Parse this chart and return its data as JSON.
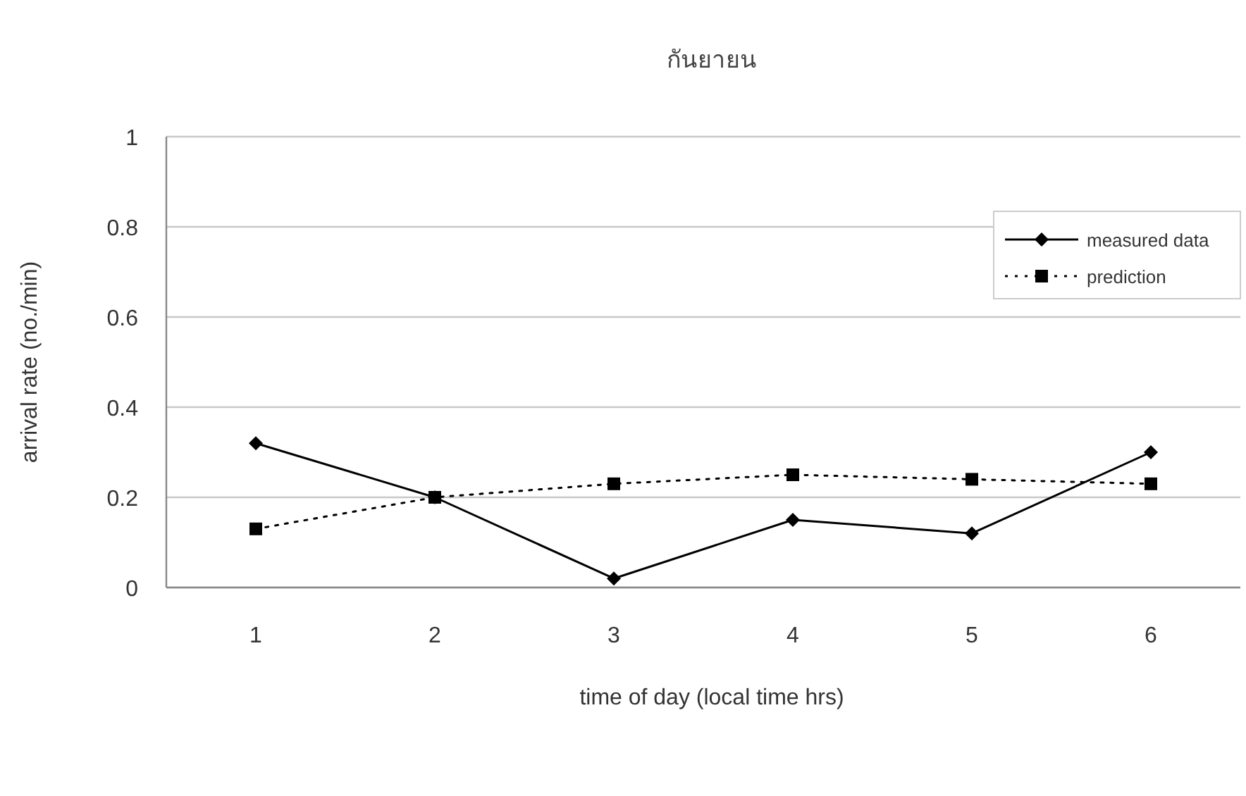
{
  "chart_data": {
    "type": "line",
    "title": "กันยายน",
    "xlabel": "time of day (local time hrs)",
    "ylabel": "arrival rate (no./min)",
    "categories": [
      "1",
      "2",
      "3",
      "4",
      "5",
      "6"
    ],
    "series": [
      {
        "name": "measured data",
        "color": "#000000",
        "marker": "diamond",
        "line_style": "solid",
        "values": [
          0.32,
          0.2,
          0.02,
          0.15,
          0.12,
          0.3
        ]
      },
      {
        "name": "prediction",
        "color": "#000000",
        "marker": "square",
        "line_style": "dotted",
        "values": [
          0.13,
          0.2,
          0.23,
          0.25,
          0.24,
          0.23
        ]
      }
    ],
    "ylim": [
      0,
      1
    ],
    "yticks": [
      0,
      0.2,
      0.4,
      0.6,
      0.8,
      1
    ],
    "grid": "y",
    "legend": "top right"
  }
}
